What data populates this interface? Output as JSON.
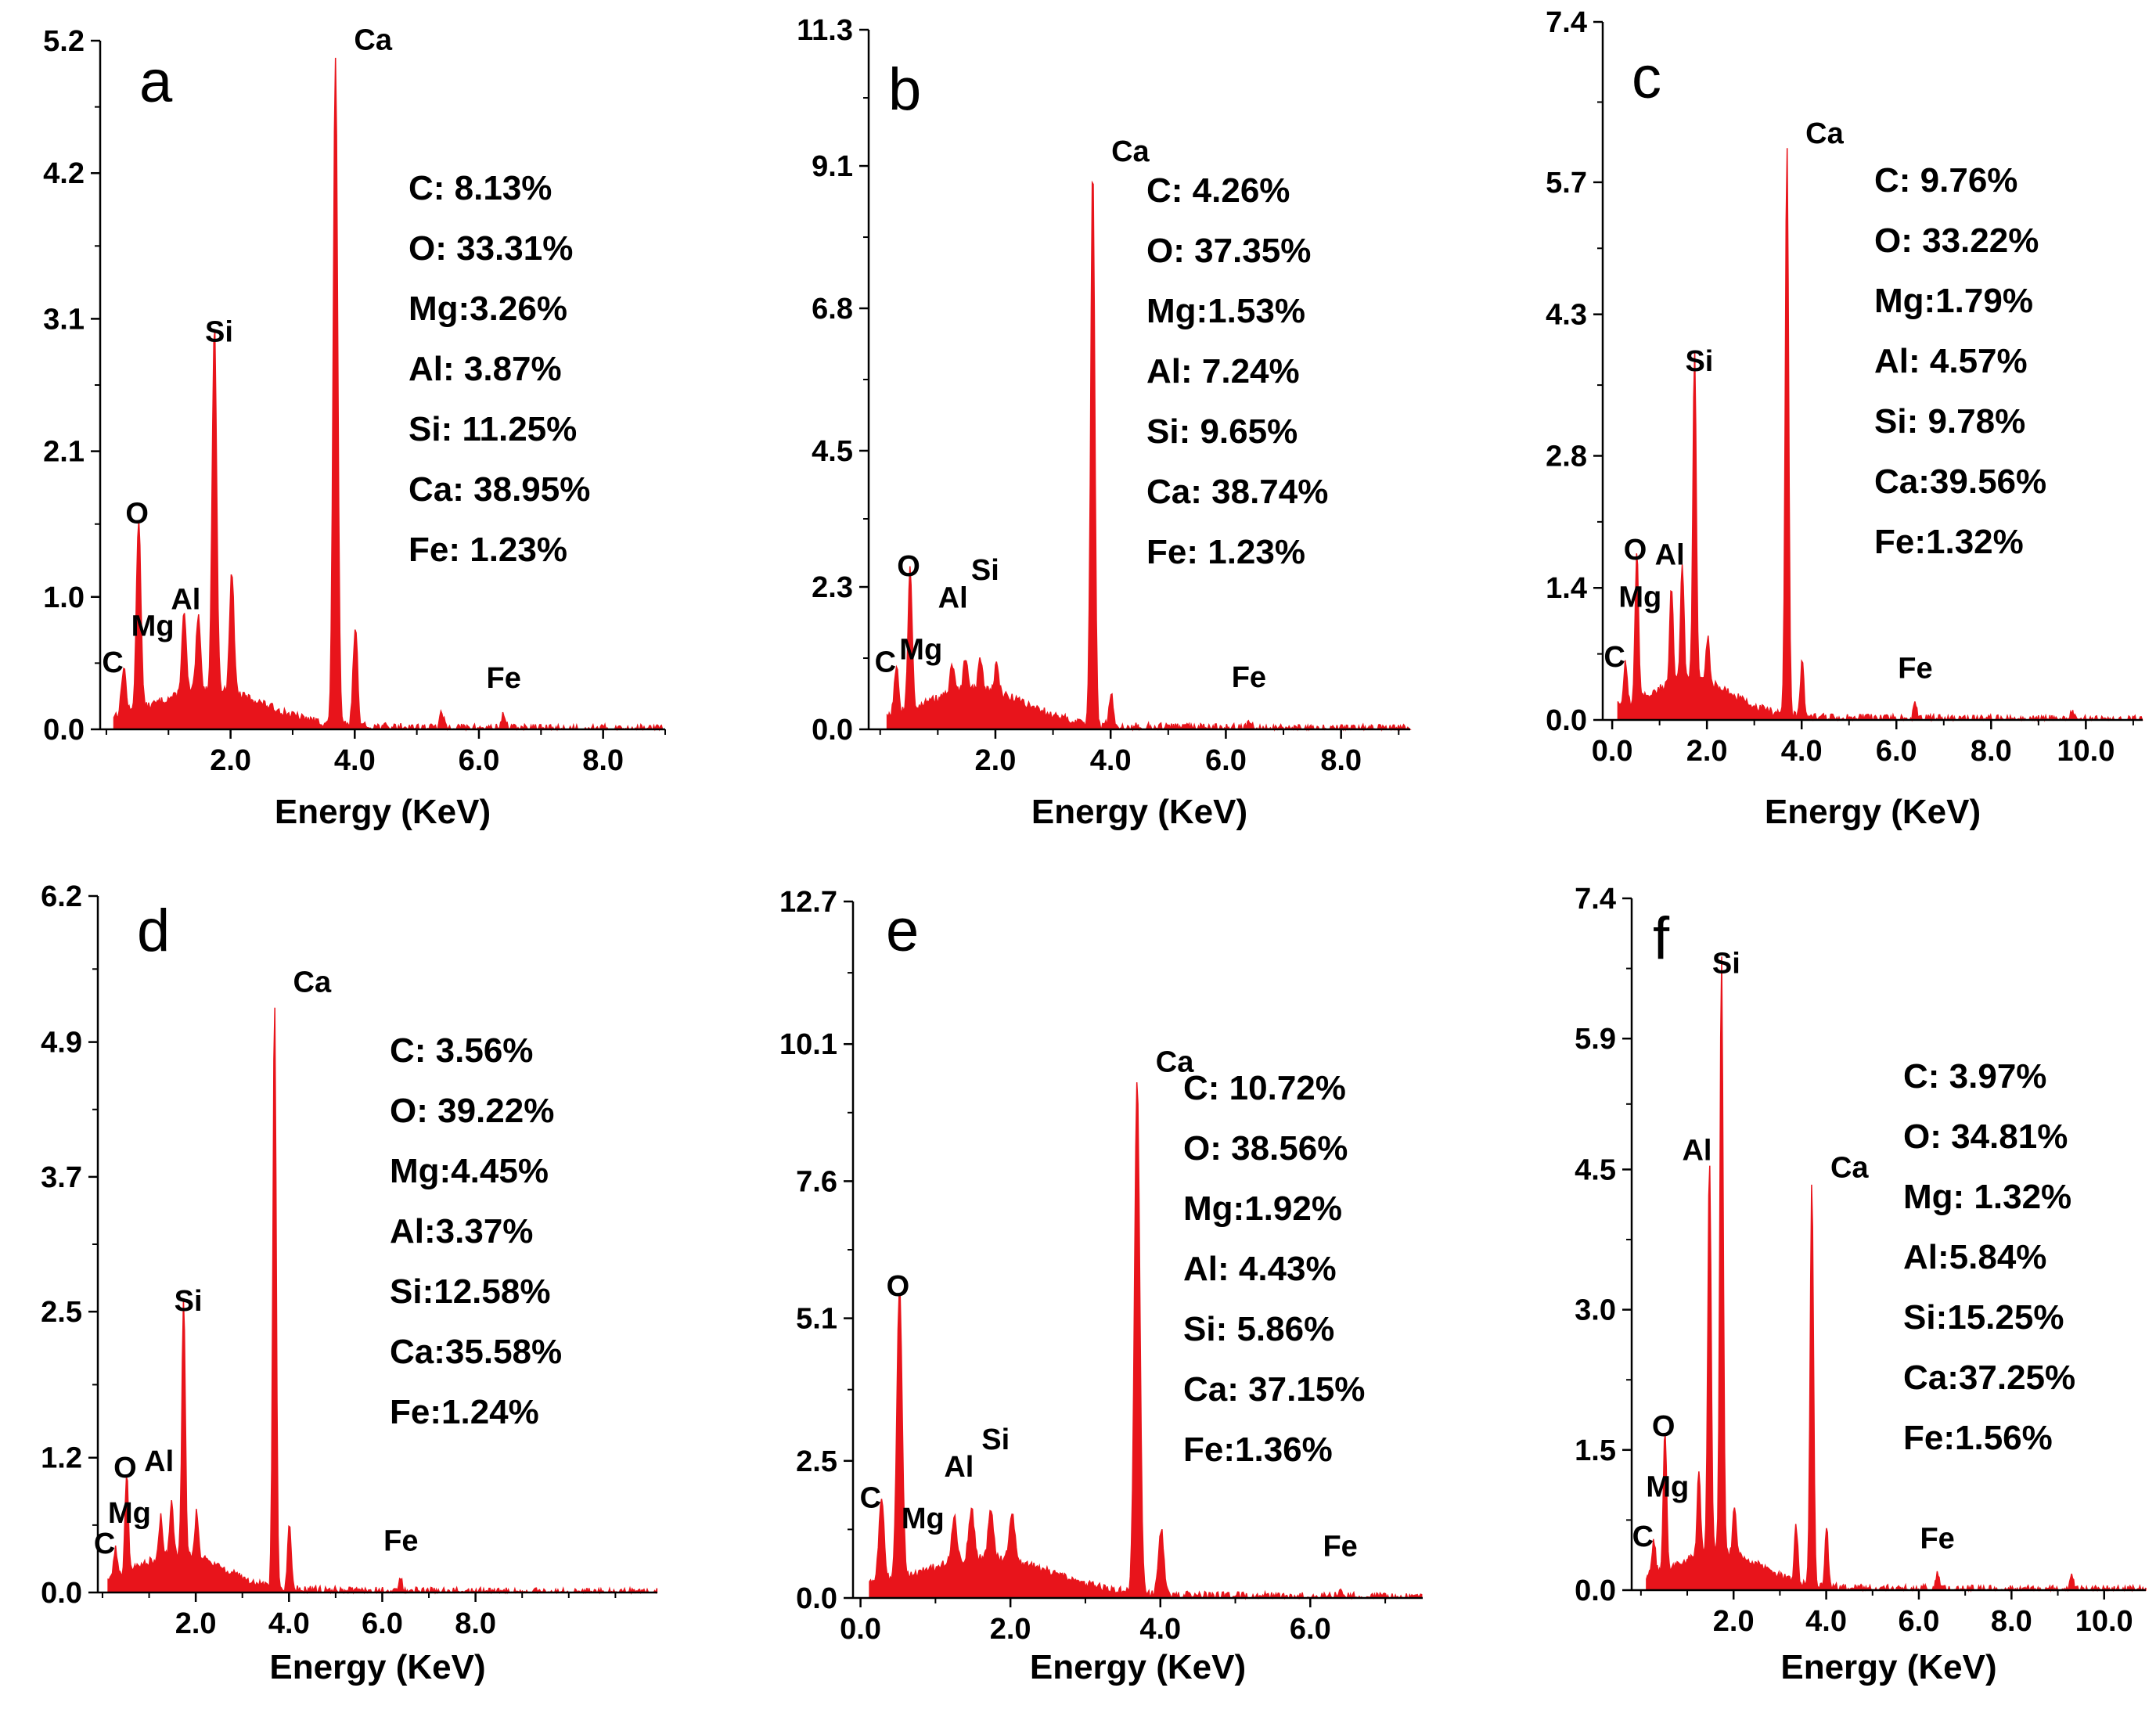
{
  "chart_data": [
    {
      "panel": "a",
      "type": "area",
      "xlabel": "Energy (KeV)",
      "x_ticks": [
        "2.0",
        "4.0",
        "6.0",
        "8.0"
      ],
      "y_ticks": [
        "0.0",
        "1.0",
        "2.1",
        "3.1",
        "4.2",
        "5.2"
      ],
      "xlim": [
        -0.1,
        9.0
      ],
      "ylim": [
        0,
        5.2
      ],
      "series": [
        {
          "color": "#e8141b",
          "x": [
            0.28,
            0.52,
            1.25,
            1.48,
            1.74,
            2.02,
            3.69,
            4.01,
            5.4,
            6.4
          ],
          "values": [
            0.35,
            1.45,
            0.6,
            0.55,
            2.75,
            0.9,
            5.05,
            0.75,
            0.1,
            0.1
          ]
        }
      ],
      "peaks": [
        {
          "label": "C",
          "x": 0.28
        },
        {
          "label": "O",
          "x": 0.52
        },
        {
          "label": "Mg",
          "x": 1.25
        },
        {
          "label": "Al",
          "x": 1.48
        },
        {
          "label": "Si",
          "x": 1.74
        },
        {
          "label": "Ca",
          "x": 3.69
        },
        {
          "label": "Fe",
          "x": 6.4
        }
      ],
      "composition": [
        "C:  8.13%",
        "O:  33.31%",
        "Mg:3.26%",
        "Al: 3.87%",
        "Si: 11.25%",
        "Ca: 38.95%",
        "Fe: 1.23%"
      ]
    },
    {
      "panel": "b",
      "type": "area",
      "xlabel": "Energy (KeV)",
      "x_ticks": [
        "2.0",
        "4.0",
        "6.0",
        "8.0"
      ],
      "y_ticks": [
        "0.0",
        "2.3",
        "4.5",
        "6.8",
        "9.1",
        "11.3"
      ],
      "xlim": [
        -0.2,
        9.2
      ],
      "ylim": [
        0,
        11.3
      ],
      "series": [
        {
          "color": "#e8141b",
          "x": [
            0.28,
            0.52,
            1.25,
            1.48,
            1.74,
            2.02,
            3.69,
            4.01,
            6.4
          ],
          "values": [
            0.75,
            2.25,
            0.45,
            0.5,
            0.5,
            0.45,
            9.0,
            0.5,
            0.1
          ]
        }
      ],
      "peaks": [
        {
          "label": "C",
          "x": 0.28
        },
        {
          "label": "O",
          "x": 0.52
        },
        {
          "label": "Mg",
          "x": 1.25
        },
        {
          "label": "Al",
          "x": 1.48
        },
        {
          "label": "Si",
          "x": 1.74
        },
        {
          "label": "Ca",
          "x": 3.69
        },
        {
          "label": "Fe",
          "x": 6.4
        }
      ],
      "composition": [
        "C:  4.26%",
        "O:  37.35%",
        "Mg:1.53%",
        "Al:  7.24%",
        "Si:  9.65%",
        "Ca: 38.74%",
        "Fe:  1.23%"
      ]
    },
    {
      "panel": "c",
      "type": "area",
      "xlabel": "Energy (KeV)",
      "x_ticks": [
        "0.0",
        "2.0",
        "4.0",
        "6.0",
        "8.0",
        "10.0"
      ],
      "y_ticks": [
        "0.0",
        "1.4",
        "2.8",
        "4.3",
        "5.7",
        "7.4"
      ],
      "xlim": [
        -0.2,
        11.2
      ],
      "ylim": [
        0,
        7.4
      ],
      "series": [
        {
          "color": "#e8141b",
          "x": [
            0.28,
            0.52,
            1.25,
            1.48,
            1.74,
            2.02,
            3.69,
            4.01,
            6.4,
            9.7
          ],
          "values": [
            0.45,
            1.55,
            1.05,
            1.25,
            3.45,
            0.5,
            6.0,
            0.6,
            0.15,
            0.08
          ]
        }
      ],
      "peaks": [
        {
          "label": "C",
          "x": 0.28
        },
        {
          "label": "O",
          "x": 0.52
        },
        {
          "label": "Al",
          "x": 1.48
        },
        {
          "label": "Mg",
          "x": 1.25
        },
        {
          "label": "Si",
          "x": 1.74
        },
        {
          "label": "Ca",
          "x": 3.69
        },
        {
          "label": "Fe",
          "x": 6.4
        }
      ],
      "composition": [
        "C: 9.76%",
        "O: 33.22%",
        "Mg:1.79%",
        "Al: 4.57%",
        "Si: 9.78%",
        "Ca:39.56%",
        "Fe:1.32%"
      ]
    },
    {
      "panel": "d",
      "type": "area",
      "xlabel": "Energy (KeV)",
      "x_ticks": [
        "2.0",
        "4.0",
        "6.0",
        "8.0"
      ],
      "y_ticks": [
        "0.0",
        "1.2",
        "2.5",
        "3.7",
        "4.9",
        "6.2"
      ],
      "xlim": [
        -0.1,
        11.9
      ],
      "ylim": [
        0,
        6.2
      ],
      "series": [
        {
          "color": "#e8141b",
          "x": [
            0.28,
            0.52,
            1.25,
            1.48,
            1.74,
            2.02,
            3.69,
            4.01,
            6.4
          ],
          "values": [
            0.25,
            0.9,
            0.35,
            0.45,
            2.3,
            0.4,
            5.25,
            0.6,
            0.1
          ]
        }
      ],
      "peaks": [
        {
          "label": "C",
          "x": 0.28
        },
        {
          "label": "O",
          "x": 0.52
        },
        {
          "label": "Al",
          "x": 1.48
        },
        {
          "label": "Mg",
          "x": 1.25
        },
        {
          "label": "Si",
          "x": 1.74
        },
        {
          "label": "Ca",
          "x": 3.69
        },
        {
          "label": "Fe",
          "x": 6.4
        }
      ],
      "composition": [
        "C: 3.56%",
        "O: 39.22%",
        "Mg:4.45%",
        "Al:3.37%",
        "Si:12.58%",
        "Ca:35.58%",
        "Fe:1.24%"
      ]
    },
    {
      "panel": "e",
      "type": "area",
      "xlabel": "Energy (KeV)",
      "x_ticks": [
        "0.0",
        "2.0",
        "4.0",
        "6.0"
      ],
      "y_ticks": [
        "0.0",
        "2.5",
        "5.1",
        "7.6",
        "10.1",
        "12.7"
      ],
      "xlim": [
        -0.1,
        7.5
      ],
      "ylim": [
        0,
        12.7
      ],
      "series": [
        {
          "color": "#e8141b",
          "x": [
            0.28,
            0.52,
            1.25,
            1.48,
            1.74,
            2.02,
            3.69,
            4.01,
            6.4
          ],
          "values": [
            1.45,
            5.25,
            0.8,
            0.9,
            0.85,
            0.9,
            9.4,
            1.2,
            0.15
          ]
        }
      ],
      "peaks": [
        {
          "label": "C",
          "x": 0.28
        },
        {
          "label": "O",
          "x": 0.52
        },
        {
          "label": "Mg",
          "x": 1.25
        },
        {
          "label": "Al",
          "x": 1.48
        },
        {
          "label": "Si",
          "x": 1.74
        },
        {
          "label": "Ca",
          "x": 3.69
        },
        {
          "label": "Fe",
          "x": 6.4
        }
      ],
      "composition": [
        "C: 10.72%",
        "O: 38.56%",
        "Mg:1.92%",
        "Al: 4.43%",
        "Si: 5.86%",
        "Ca: 37.15%",
        "Fe:1.36%"
      ]
    },
    {
      "panel": "f",
      "type": "area",
      "xlabel": "Energy (KeV)",
      "x_ticks": [
        "2.0",
        "4.0",
        "6.0",
        "8.0",
        "10.0"
      ],
      "y_ticks": [
        "0.0",
        "1.5",
        "3.0",
        "4.5",
        "5.9",
        "7.4"
      ],
      "xlim": [
        -0.2,
        10.9
      ],
      "ylim": [
        0,
        7.4
      ],
      "series": [
        {
          "color": "#e8141b",
          "x": [
            0.28,
            0.52,
            1.25,
            1.48,
            1.74,
            2.02,
            3.35,
            3.69,
            4.01,
            6.4,
            9.3
          ],
          "values": [
            0.35,
            1.5,
            0.85,
            4.2,
            6.35,
            0.5,
            0.6,
            4.3,
            0.6,
            0.15,
            0.15
          ]
        }
      ],
      "peaks": [
        {
          "label": "C",
          "x": 0.28
        },
        {
          "label": "O",
          "x": 0.52
        },
        {
          "label": "Mg",
          "x": 1.25
        },
        {
          "label": "Al",
          "x": 1.48
        },
        {
          "label": "Si",
          "x": 1.74
        },
        {
          "label": "Ca",
          "x": 3.69
        },
        {
          "label": "Fe",
          "x": 6.4
        }
      ],
      "composition": [
        "C: 3.97%",
        "O: 34.81%",
        "Mg: 1.32%",
        "Al:5.84%",
        "Si:15.25%",
        "Ca:37.25%",
        "Fe:1.56%"
      ]
    }
  ]
}
